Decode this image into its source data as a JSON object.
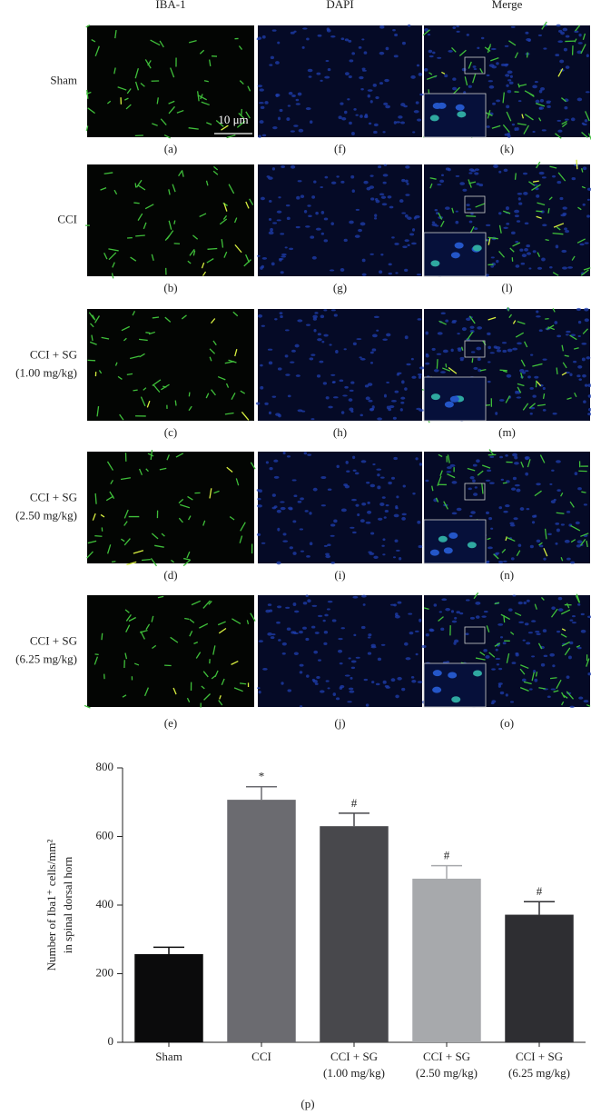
{
  "figure": {
    "columns": [
      "IBA-1",
      "DAPI",
      "Merge"
    ],
    "rows": [
      {
        "label": [
          "Sham"
        ],
        "panels": [
          "(a)",
          "(f)",
          "(k)"
        ]
      },
      {
        "label": [
          "CCI"
        ],
        "panels": [
          "(b)",
          "(g)",
          "(l)"
        ]
      },
      {
        "label": [
          "CCI + SG",
          "(1.00 mg/kg)"
        ],
        "panels": [
          "(c)",
          "(h)",
          "(m)"
        ]
      },
      {
        "label": [
          "CCI + SG",
          "(2.50 mg/kg)"
        ],
        "panels": [
          "(d)",
          "(i)",
          "(n)"
        ]
      },
      {
        "label": [
          "CCI + SG",
          "(6.25 mg/kg)"
        ],
        "panels": [
          "(e)",
          "(j)",
          "(o)"
        ]
      }
    ],
    "scale_bar": "10 μm",
    "caption": "(p)"
  },
  "chart_data": {
    "type": "bar",
    "y_label": [
      "Number of Iba1⁺ cells/mm²",
      "in spinal dorsal horn"
    ],
    "categories": [
      [
        "Sham"
      ],
      [
        "CCI"
      ],
      [
        "CCI + SG",
        "(1.00 mg/kg)"
      ],
      [
        "CCI + SG",
        "(2.50 mg/kg)"
      ],
      [
        "CCI + SG",
        "(6.25 mg/kg)"
      ]
    ],
    "values": [
      257,
      707,
      630,
      477,
      372
    ],
    "errors": [
      20,
      38,
      38,
      38,
      38
    ],
    "annotations": [
      null,
      "*",
      "#",
      "#",
      "#"
    ],
    "colors": [
      "#0b0b0c",
      "#6b6b70",
      "#48484c",
      "#a7a9ac",
      "#2e2e32"
    ],
    "ylim": [
      0,
      800
    ],
    "yticks": [
      0,
      200,
      400,
      600,
      800
    ]
  }
}
